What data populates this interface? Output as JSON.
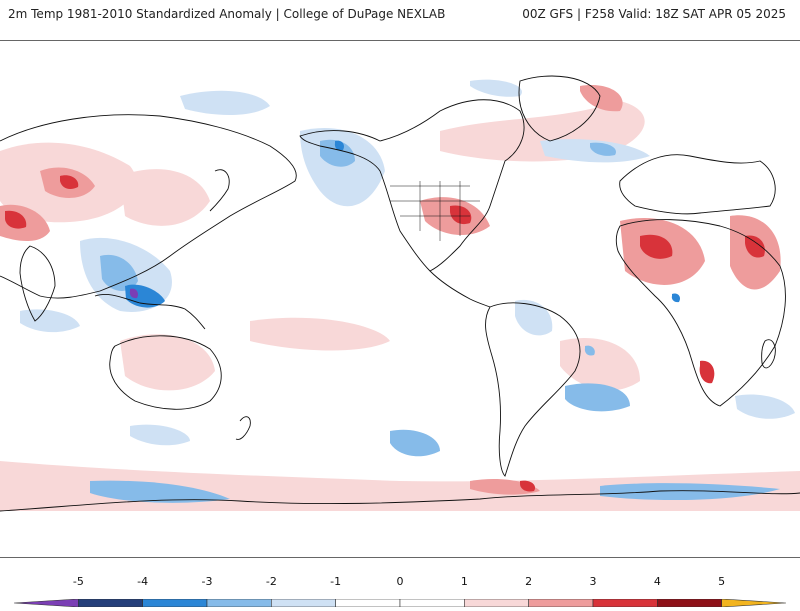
{
  "header": {
    "title": "2m Temp 1981-2010 Standardized Anomaly | College of DuPage NEXLAB",
    "run_info": "00Z GFS | F258 Valid: 18Z SAT APR 05 2025"
  },
  "colorbar": {
    "ticks": [
      {
        "label": "-5",
        "value": -5
      },
      {
        "label": "-4",
        "value": -4
      },
      {
        "label": "-3",
        "value": -3
      },
      {
        "label": "-2",
        "value": -2
      },
      {
        "label": "-1",
        "value": -1
      },
      {
        "label": "0",
        "value": 0
      },
      {
        "label": "1",
        "value": 1
      },
      {
        "label": "2",
        "value": 2
      },
      {
        "label": "3",
        "value": 3
      },
      {
        "label": "4",
        "value": 4
      },
      {
        "label": "5",
        "value": 5
      }
    ],
    "bins": [
      {
        "from": -6,
        "to": -5,
        "color": "#7b3fb5"
      },
      {
        "from": -5,
        "to": -4,
        "color": "#243f7a"
      },
      {
        "from": -4,
        "to": -3,
        "color": "#2b86d6"
      },
      {
        "from": -3,
        "to": -2,
        "color": "#86bbe9"
      },
      {
        "from": -2,
        "to": -1,
        "color": "#cfe1f4"
      },
      {
        "from": -1,
        "to": 0,
        "color": "#ffffff"
      },
      {
        "from": 0,
        "to": 1,
        "color": "#ffffff"
      },
      {
        "from": 1,
        "to": 2,
        "color": "#f8d8d8"
      },
      {
        "from": 2,
        "to": 3,
        "color": "#ee9c9c"
      },
      {
        "from": 3,
        "to": 4,
        "color": "#d8333a"
      },
      {
        "from": 4,
        "to": 5,
        "color": "#8e1118"
      },
      {
        "from": 5,
        "to": 6,
        "color": "#f2b41f"
      }
    ]
  },
  "map": {
    "colors": {
      "land_outline": "#111111",
      "warm_weak": "#f8d8d8",
      "warm_mid": "#ee9c9c",
      "warm_strong": "#d8333a",
      "cold_weak": "#cfe1f4",
      "cold_mid": "#86bbe9",
      "cold_strong": "#2b86d6",
      "cold_extreme": "#7b3fb5"
    }
  }
}
